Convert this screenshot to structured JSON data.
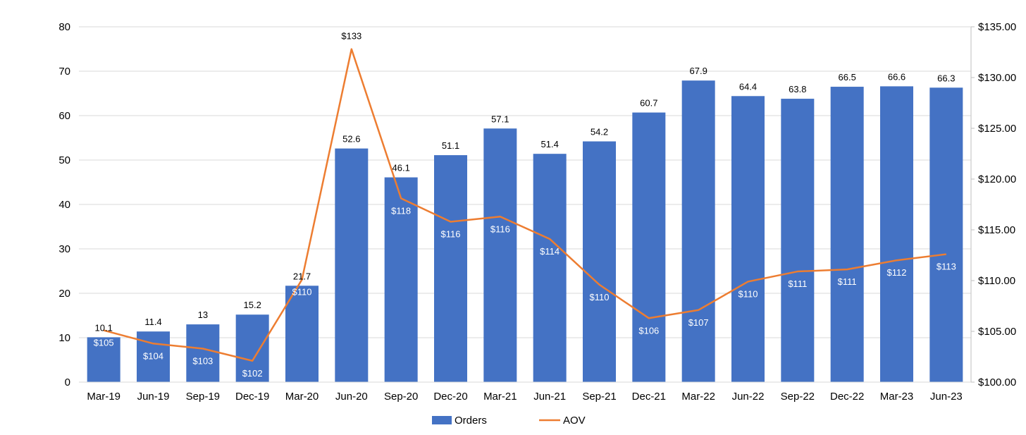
{
  "chart_data": {
    "type": "bar",
    "title": "",
    "xlabel": "",
    "ylabel": "",
    "categories": [
      "Mar-19",
      "Jun-19",
      "Sep-19",
      "Dec-19",
      "Mar-20",
      "Jun-20",
      "Sep-20",
      "Dec-20",
      "Mar-21",
      "Jun-21",
      "Sep-21",
      "Dec-21",
      "Mar-22",
      "Jun-22",
      "Sep-22",
      "Dec-22",
      "Mar-23",
      "Jun-23"
    ],
    "series": [
      {
        "name": "Orders",
        "type": "bar",
        "axis": "left",
        "color": "#4472C4",
        "values": [
          10.1,
          11.4,
          13,
          15.2,
          21.7,
          52.6,
          46.1,
          51.1,
          57.1,
          51.4,
          54.2,
          60.7,
          67.9,
          64.4,
          63.8,
          66.5,
          66.6,
          66.3
        ],
        "labels": [
          "10.1",
          "11.4",
          "13",
          "15.2",
          "21.7",
          "52.6",
          "46.1",
          "51.1",
          "57.1",
          "51.4",
          "54.2",
          "60.7",
          "67.9",
          "64.4",
          "63.8",
          "66.5",
          "66.6",
          "66.3"
        ]
      },
      {
        "name": "AOV",
        "type": "line",
        "axis": "right",
        "color": "#ED7D31",
        "values": [
          105.1,
          103.8,
          103.3,
          102.1,
          110.1,
          132.8,
          118.1,
          115.8,
          116.3,
          114.1,
          109.6,
          106.3,
          107.1,
          109.9,
          110.9,
          111.1,
          112.0,
          112.6
        ],
        "labels": [
          "$105",
          "$104",
          "$103",
          "$102",
          "$110",
          "$133",
          "$118",
          "$116",
          "$116",
          "$114",
          "$110",
          "$106",
          "$107",
          "$110",
          "$111",
          "$111",
          "$112",
          "$113"
        ]
      }
    ],
    "y_left": {
      "min": 0,
      "max": 80,
      "step": 10,
      "ticks": [
        "0",
        "10",
        "20",
        "30",
        "40",
        "50",
        "60",
        "70",
        "80"
      ]
    },
    "y_right": {
      "min": 100,
      "max": 135,
      "step": 5,
      "ticks": [
        "$100.00",
        "$105.00",
        "$110.00",
        "$115.00",
        "$120.00",
        "$125.00",
        "$130.00",
        "$135.00"
      ]
    },
    "grid": true,
    "legend_position": "bottom-center"
  }
}
